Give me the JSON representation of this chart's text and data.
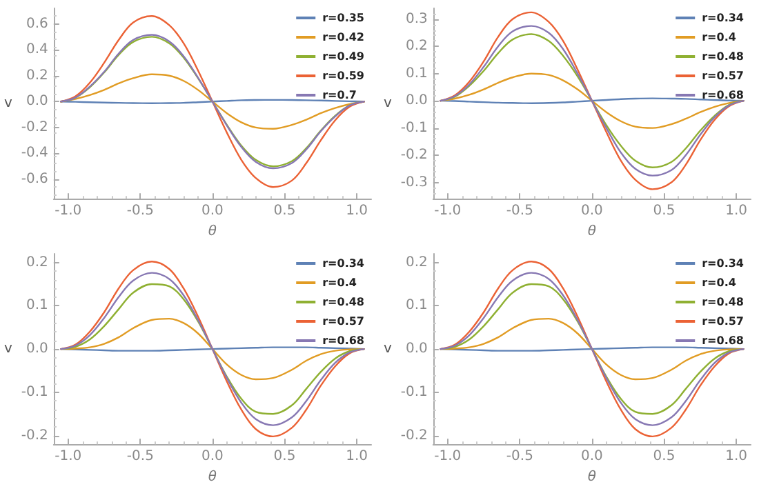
{
  "chart_data": [
    {
      "type": "line",
      "xlabel": "θ",
      "ylabel": "v",
      "legend": "top right",
      "marker": "none",
      "line_style": "solid",
      "x": [
        -1.05,
        -0.95,
        -0.85,
        -0.75,
        -0.65,
        -0.55,
        -0.42,
        -0.3,
        -0.2,
        -0.1,
        0,
        0.1,
        0.2,
        0.3,
        0.42,
        0.55,
        0.65,
        0.75,
        0.85,
        0.95,
        1.05
      ],
      "xlim": [
        -1.1,
        1.1
      ],
      "xticks": [
        {
          "value": -1,
          "label": "-1.0"
        },
        {
          "value": -0.5,
          "label": "-0.5"
        },
        {
          "value": 0,
          "label": "0.0"
        },
        {
          "value": 0.5,
          "label": "0.5"
        },
        {
          "value": 1,
          "label": "1.0"
        }
      ],
      "ylim": [
        -0.75,
        0.72
      ],
      "yticks": [
        {
          "value": -0.6,
          "label": "-0.6"
        },
        {
          "value": -0.4,
          "label": "-0.4"
        },
        {
          "value": -0.2,
          "label": "-0.2"
        },
        {
          "value": 0,
          "label": "0.0"
        },
        {
          "value": 0.2,
          "label": "0.2"
        },
        {
          "value": 0.4,
          "label": "0.4"
        },
        {
          "value": 0.6,
          "label": "0.6"
        }
      ],
      "series": [
        {
          "name": "r=0.35",
          "color": "#5e81b5",
          "values": [
            0,
            -0.002,
            -0.005,
            -0.008,
            -0.01,
            -0.012,
            -0.013,
            -0.012,
            -0.01,
            -0.005,
            0,
            0.005,
            0.01,
            0.012,
            0.013,
            0.012,
            0.01,
            0.008,
            0.005,
            0.002,
            0
          ]
        },
        {
          "name": "r=0.42",
          "color": "#e19c24",
          "values": [
            0,
            0.02,
            0.05,
            0.09,
            0.14,
            0.18,
            0.21,
            0.2,
            0.16,
            0.09,
            0,
            -0.09,
            -0.16,
            -0.2,
            -0.21,
            -0.18,
            -0.14,
            -0.09,
            -0.05,
            -0.02,
            0
          ]
        },
        {
          "name": "r=0.49",
          "color": "#8fb032",
          "values": [
            0,
            0.03,
            0.11,
            0.225,
            0.36,
            0.46,
            0.5,
            0.45,
            0.34,
            0.18,
            0,
            -0.18,
            -0.34,
            -0.45,
            -0.5,
            -0.46,
            -0.36,
            -0.225,
            -0.11,
            -0.03,
            0
          ]
        },
        {
          "name": "r=0.59",
          "color": "#eb6235",
          "values": [
            0,
            0.04,
            0.145,
            0.3,
            0.475,
            0.61,
            0.66,
            0.59,
            0.45,
            0.24,
            0,
            -0.24,
            -0.45,
            -0.59,
            -0.66,
            -0.61,
            -0.475,
            -0.3,
            -0.145,
            -0.04,
            0
          ]
        },
        {
          "name": "r=0.7",
          "color": "#8778b3",
          "values": [
            0,
            0.03,
            0.115,
            0.23,
            0.37,
            0.475,
            0.515,
            0.465,
            0.35,
            0.185,
            0,
            -0.185,
            -0.35,
            -0.465,
            -0.515,
            -0.475,
            -0.37,
            -0.23,
            -0.115,
            -0.03,
            0
          ]
        }
      ]
    },
    {
      "type": "line",
      "xlabel": "θ",
      "ylabel": "v",
      "legend": "top right",
      "marker": "none",
      "line_style": "solid",
      "x": [
        -1.05,
        -0.95,
        -0.85,
        -0.75,
        -0.65,
        -0.55,
        -0.42,
        -0.3,
        -0.2,
        -0.1,
        0,
        0.1,
        0.2,
        0.3,
        0.42,
        0.55,
        0.65,
        0.75,
        0.85,
        0.95,
        1.05
      ],
      "xlim": [
        -1.1,
        1.1
      ],
      "xticks": [
        {
          "value": -1,
          "label": "-1.0"
        },
        {
          "value": -0.5,
          "label": "-0.5"
        },
        {
          "value": 0,
          "label": "0.0"
        },
        {
          "value": 0.5,
          "label": "0.5"
        },
        {
          "value": 1,
          "label": "1.0"
        }
      ],
      "ylim": [
        -0.36,
        0.34
      ],
      "yticks": [
        {
          "value": -0.3,
          "label": "-0.3"
        },
        {
          "value": -0.2,
          "label": "-0.2"
        },
        {
          "value": -0.1,
          "label": "-0.1"
        },
        {
          "value": 0,
          "label": "0.0"
        },
        {
          "value": 0.1,
          "label": "0.1"
        },
        {
          "value": 0.2,
          "label": "0.2"
        },
        {
          "value": 0.3,
          "label": "0.3"
        }
      ],
      "series": [
        {
          "name": "r=0.34",
          "color": "#5e81b5",
          "values": [
            0,
            -0.001,
            -0.003,
            -0.005,
            -0.007,
            -0.008,
            -0.009,
            -0.008,
            -0.006,
            -0.003,
            0,
            0.003,
            0.006,
            0.008,
            0.009,
            0.008,
            0.007,
            0.005,
            0.003,
            0.001,
            0
          ]
        },
        {
          "name": "r=0.4",
          "color": "#e19c24",
          "values": [
            0,
            0.008,
            0.022,
            0.042,
            0.066,
            0.086,
            0.1,
            0.095,
            0.075,
            0.042,
            0,
            -0.042,
            -0.075,
            -0.095,
            -0.1,
            -0.086,
            -0.066,
            -0.042,
            -0.022,
            -0.008,
            0
          ]
        },
        {
          "name": "r=0.48",
          "color": "#8fb032",
          "values": [
            0,
            0.015,
            0.055,
            0.11,
            0.175,
            0.225,
            0.245,
            0.22,
            0.165,
            0.09,
            0,
            -0.09,
            -0.165,
            -0.22,
            -0.245,
            -0.225,
            -0.175,
            -0.11,
            -0.055,
            -0.015,
            0
          ]
        },
        {
          "name": "r=0.57",
          "color": "#eb6235",
          "values": [
            0,
            0.02,
            0.07,
            0.145,
            0.235,
            0.3,
            0.325,
            0.29,
            0.22,
            0.115,
            0,
            -0.115,
            -0.22,
            -0.29,
            -0.325,
            -0.3,
            -0.235,
            -0.145,
            -0.07,
            -0.02,
            0
          ]
        },
        {
          "name": "r=0.68",
          "color": "#8778b3",
          "values": [
            0,
            0.017,
            0.06,
            0.125,
            0.2,
            0.255,
            0.275,
            0.25,
            0.19,
            0.1,
            0,
            -0.1,
            -0.19,
            -0.25,
            -0.275,
            -0.255,
            -0.2,
            -0.125,
            -0.06,
            -0.017,
            0
          ]
        }
      ]
    },
    {
      "type": "line",
      "xlabel": "θ",
      "ylabel": "v",
      "legend": "top right",
      "marker": "none",
      "line_style": "solid",
      "x": [
        -1.05,
        -0.95,
        -0.85,
        -0.75,
        -0.65,
        -0.55,
        -0.42,
        -0.3,
        -0.2,
        -0.1,
        0,
        0.1,
        0.2,
        0.3,
        0.42,
        0.55,
        0.65,
        0.75,
        0.85,
        0.95,
        1.05
      ],
      "xlim": [
        -1.1,
        1.1
      ],
      "xticks": [
        {
          "value": -1,
          "label": "-1.0"
        },
        {
          "value": -0.5,
          "label": "-0.5"
        },
        {
          "value": 0,
          "label": "0.0"
        },
        {
          "value": 0.5,
          "label": "0.5"
        },
        {
          "value": 1,
          "label": "1.0"
        }
      ],
      "ylim": [
        -0.22,
        0.22
      ],
      "yticks": [
        {
          "value": -0.2,
          "label": "-0.2"
        },
        {
          "value": -0.1,
          "label": "-0.1"
        },
        {
          "value": 0,
          "label": "0.0"
        },
        {
          "value": 0.1,
          "label": "0.1"
        },
        {
          "value": 0.2,
          "label": "0.2"
        }
      ],
      "series": [
        {
          "name": "r=0.34",
          "color": "#5e81b5",
          "values": [
            0,
            -0.001,
            -0.002,
            -0.003,
            -0.004,
            -0.004,
            -0.004,
            -0.003,
            -0.002,
            -0.001,
            0,
            0.001,
            0.002,
            0.003,
            0.004,
            0.004,
            0.004,
            0.003,
            0.002,
            0.001,
            0
          ]
        },
        {
          "name": "r=0.4",
          "color": "#e19c24",
          "values": [
            0,
            0.001,
            0.004,
            0.012,
            0.027,
            0.048,
            0.067,
            0.07,
            0.06,
            0.036,
            0,
            -0.036,
            -0.06,
            -0.07,
            -0.067,
            -0.048,
            -0.027,
            -0.012,
            -0.004,
            -0.001,
            0
          ]
        },
        {
          "name": "r=0.48",
          "color": "#8fb032",
          "values": [
            0,
            0.005,
            0.022,
            0.053,
            0.092,
            0.13,
            0.15,
            0.145,
            0.115,
            0.064,
            0,
            -0.064,
            -0.115,
            -0.145,
            -0.15,
            -0.13,
            -0.092,
            -0.053,
            -0.022,
            -0.005,
            0
          ]
        },
        {
          "name": "r=0.57",
          "color": "#eb6235",
          "values": [
            0,
            0.01,
            0.04,
            0.085,
            0.14,
            0.182,
            0.202,
            0.185,
            0.14,
            0.075,
            0,
            -0.075,
            -0.14,
            -0.185,
            -0.202,
            -0.182,
            -0.14,
            -0.085,
            -0.04,
            -0.01,
            0
          ]
        },
        {
          "name": "r=0.68",
          "color": "#8778b3",
          "values": [
            0,
            0.008,
            0.032,
            0.072,
            0.12,
            0.158,
            0.176,
            0.162,
            0.124,
            0.067,
            0,
            -0.067,
            -0.124,
            -0.162,
            -0.176,
            -0.158,
            -0.12,
            -0.072,
            -0.032,
            -0.008,
            0
          ]
        }
      ]
    },
    {
      "type": "line",
      "xlabel": "θ",
      "ylabel": "v",
      "legend": "top right",
      "marker": "none",
      "line_style": "solid",
      "x": [
        -1.05,
        -0.95,
        -0.85,
        -0.75,
        -0.65,
        -0.55,
        -0.42,
        -0.3,
        -0.2,
        -0.1,
        0,
        0.1,
        0.2,
        0.3,
        0.42,
        0.55,
        0.65,
        0.75,
        0.85,
        0.95,
        1.05
      ],
      "xlim": [
        -1.1,
        1.1
      ],
      "xticks": [
        {
          "value": -1,
          "label": "-1.0"
        },
        {
          "value": -0.5,
          "label": "-0.5"
        },
        {
          "value": 0,
          "label": "0.0"
        },
        {
          "value": 0.5,
          "label": "0.5"
        },
        {
          "value": 1,
          "label": "1.0"
        }
      ],
      "ylim": [
        -0.22,
        0.22
      ],
      "yticks": [
        {
          "value": -0.2,
          "label": "-0.2"
        },
        {
          "value": -0.1,
          "label": "-0.1"
        },
        {
          "value": 0,
          "label": "0.0"
        },
        {
          "value": 0.1,
          "label": "0.1"
        },
        {
          "value": 0.2,
          "label": "0.2"
        }
      ],
      "series": [
        {
          "name": "r=0.34",
          "color": "#5e81b5",
          "values": [
            0,
            -0.001,
            -0.002,
            -0.003,
            -0.004,
            -0.004,
            -0.004,
            -0.003,
            -0.002,
            -0.001,
            0,
            0.001,
            0.002,
            0.003,
            0.004,
            0.004,
            0.004,
            0.003,
            0.002,
            0.001,
            0
          ]
        },
        {
          "name": "r=0.4",
          "color": "#e19c24",
          "values": [
            0,
            0.001,
            0.004,
            0.012,
            0.027,
            0.048,
            0.067,
            0.07,
            0.06,
            0.036,
            0,
            -0.036,
            -0.06,
            -0.07,
            -0.067,
            -0.048,
            -0.027,
            -0.012,
            -0.004,
            -0.001,
            0
          ]
        },
        {
          "name": "r=0.48",
          "color": "#8fb032",
          "values": [
            0,
            0.005,
            0.022,
            0.053,
            0.092,
            0.13,
            0.15,
            0.145,
            0.115,
            0.064,
            0,
            -0.064,
            -0.115,
            -0.145,
            -0.15,
            -0.13,
            -0.092,
            -0.053,
            -0.022,
            -0.005,
            0
          ]
        },
        {
          "name": "r=0.57",
          "color": "#eb6235",
          "values": [
            0,
            0.01,
            0.04,
            0.085,
            0.14,
            0.182,
            0.202,
            0.185,
            0.14,
            0.075,
            0,
            -0.075,
            -0.14,
            -0.185,
            -0.202,
            -0.182,
            -0.14,
            -0.085,
            -0.04,
            -0.01,
            0
          ]
        },
        {
          "name": "r=0.68",
          "color": "#8778b3",
          "values": [
            0,
            0.008,
            0.032,
            0.072,
            0.12,
            0.158,
            0.176,
            0.162,
            0.124,
            0.067,
            0,
            -0.067,
            -0.124,
            -0.162,
            -0.176,
            -0.158,
            -0.12,
            -0.072,
            -0.032,
            -0.008,
            0
          ]
        }
      ]
    }
  ]
}
